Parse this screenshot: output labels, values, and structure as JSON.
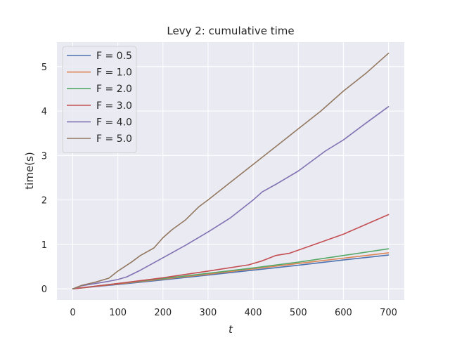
{
  "chart_data": {
    "type": "line",
    "title": "Levy 2: cumulative time",
    "xlabel": "t",
    "ylabel": "time(s)",
    "xlim": [
      -35,
      735
    ],
    "ylim": [
      -0.25,
      5.55
    ],
    "xticks": [
      0,
      100,
      200,
      300,
      400,
      500,
      600,
      700
    ],
    "yticks": [
      0,
      1,
      2,
      3,
      4,
      5
    ],
    "grid": true,
    "legend_position": "top-left",
    "background": "#eaeaf2",
    "series": [
      {
        "name": "F = 0.5",
        "legend_label": "F = 0.5",
        "color": "#4c72b0",
        "x": [
          0,
          50,
          100,
          200,
          300,
          400,
          500,
          600,
          700
        ],
        "y": [
          0,
          0.05,
          0.1,
          0.2,
          0.31,
          0.42,
          0.53,
          0.65,
          0.76
        ]
      },
      {
        "name": "F = 1.0",
        "legend_label": "F = 1.0",
        "color": "#dd8452",
        "x": [
          0,
          50,
          100,
          200,
          300,
          400,
          500,
          600,
          700
        ],
        "y": [
          0,
          0.055,
          0.11,
          0.22,
          0.33,
          0.45,
          0.57,
          0.69,
          0.81
        ]
      },
      {
        "name": "F = 2.0",
        "legend_label": "F = 2.0",
        "color": "#55a868",
        "x": [
          0,
          50,
          100,
          200,
          300,
          400,
          500,
          600,
          700
        ],
        "y": [
          0,
          0.06,
          0.12,
          0.23,
          0.35,
          0.47,
          0.6,
          0.75,
          0.9
        ]
      },
      {
        "name": "F = 3.0",
        "legend_label": "F = 3.0",
        "color": "#c44e52",
        "x": [
          0,
          50,
          100,
          200,
          300,
          390,
          420,
          450,
          480,
          550,
          600,
          650,
          700
        ],
        "y": [
          0,
          0.06,
          0.12,
          0.25,
          0.4,
          0.54,
          0.63,
          0.75,
          0.8,
          1.05,
          1.23,
          1.45,
          1.67
        ]
      },
      {
        "name": "F = 4.0",
        "legend_label": "F = 4.0",
        "color": "#8172b3",
        "x": [
          0,
          20,
          50,
          80,
          100,
          120,
          150,
          200,
          250,
          300,
          350,
          400,
          420,
          450,
          500,
          540,
          560,
          600,
          650,
          700
        ],
        "y": [
          0,
          0.07,
          0.12,
          0.17,
          0.21,
          0.27,
          0.42,
          0.7,
          0.98,
          1.28,
          1.6,
          2.0,
          2.18,
          2.35,
          2.65,
          2.95,
          3.1,
          3.35,
          3.73,
          4.1
        ]
      },
      {
        "name": "F = 5.0",
        "legend_label": "F = 5.0",
        "color": "#937860",
        "x": [
          0,
          20,
          50,
          80,
          100,
          130,
          150,
          180,
          200,
          220,
          250,
          280,
          300,
          350,
          400,
          450,
          500,
          550,
          600,
          650,
          700
        ],
        "y": [
          0,
          0.08,
          0.15,
          0.24,
          0.4,
          0.6,
          0.75,
          0.92,
          1.15,
          1.33,
          1.55,
          1.85,
          2.0,
          2.4,
          2.8,
          3.2,
          3.6,
          4.0,
          4.45,
          4.85,
          5.3
        ]
      }
    ]
  }
}
